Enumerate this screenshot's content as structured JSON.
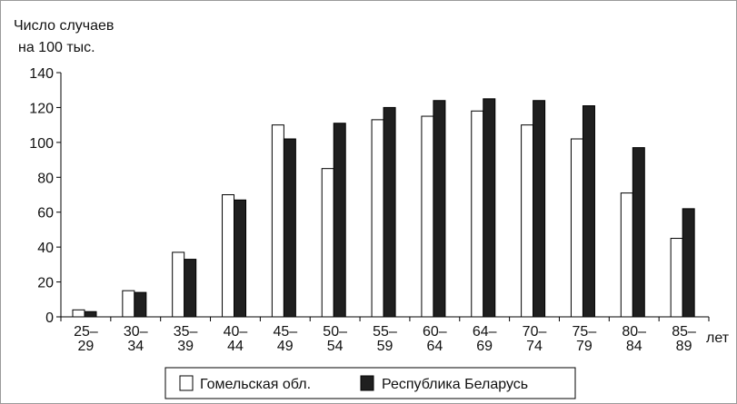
{
  "chart_data": {
    "type": "bar",
    "ylabel": [
      "Число случаев",
      "на 100 тыс."
    ],
    "xlabel": "лет",
    "ylim": [
      0,
      140
    ],
    "yticks": [
      "0",
      "20",
      "40",
      "60",
      "80",
      "100",
      "120",
      "140"
    ],
    "categories": [
      [
        "25–",
        "29"
      ],
      [
        "30–",
        "34"
      ],
      [
        "35–",
        "39"
      ],
      [
        "40–",
        "44"
      ],
      [
        "45–",
        "49"
      ],
      [
        "50–",
        "54"
      ],
      [
        "55–",
        "59"
      ],
      [
        "60–",
        "64"
      ],
      [
        "64–",
        "69"
      ],
      [
        "70–",
        "74"
      ],
      [
        "75–",
        "79"
      ],
      [
        "80–",
        "84"
      ],
      [
        "85–",
        "89"
      ]
    ],
    "series": [
      {
        "name": "Гомельская обл.",
        "color": "#ffffff",
        "values": [
          4,
          15,
          37,
          70,
          110,
          85,
          113,
          115,
          118,
          110,
          102,
          71,
          45
        ]
      },
      {
        "name": "Республика Беларусь",
        "color": "#1f1f1f",
        "values": [
          3,
          14,
          33,
          67,
          102,
          111,
          120,
          124,
          125,
          124,
          121,
          97,
          62
        ]
      }
    ],
    "legend": "bottom",
    "grid": false
  }
}
